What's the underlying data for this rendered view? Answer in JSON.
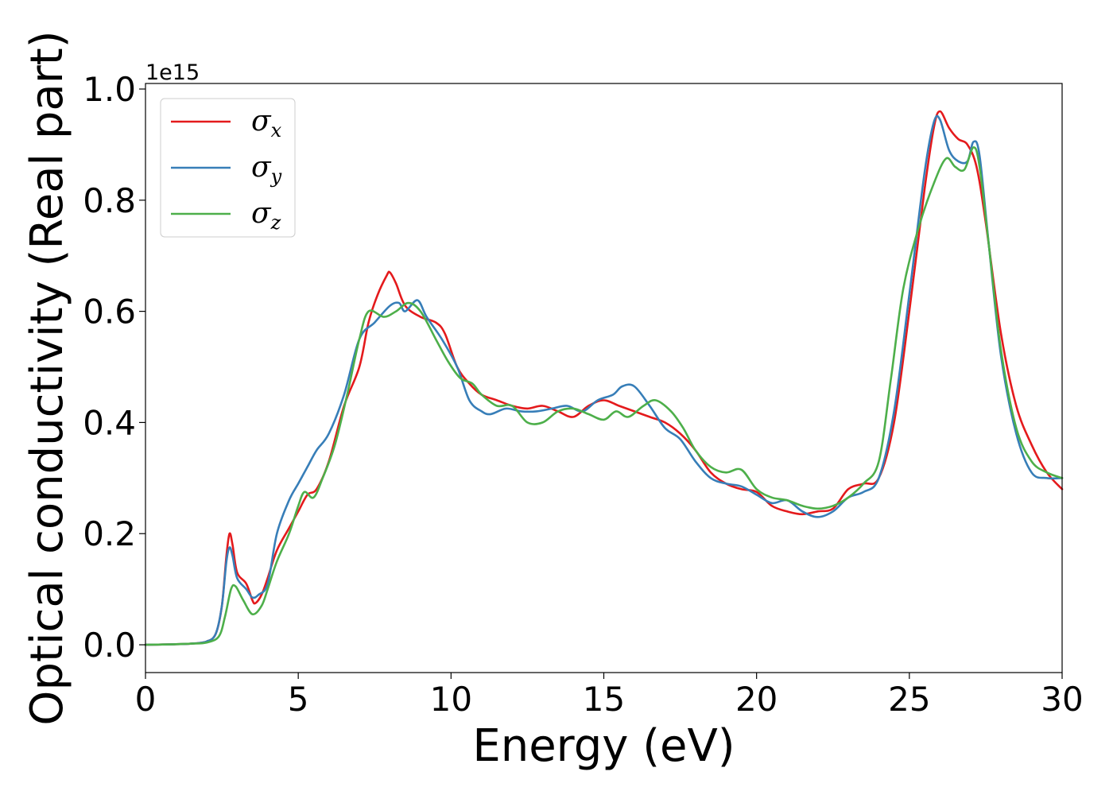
{
  "chart_data": {
    "type": "line",
    "xlabel": "Energy (eV)",
    "ylabel": "Optical conductivity (Real part)",
    "y_offset_label": "1e15",
    "xlim": [
      0,
      30
    ],
    "ylim": [
      -0.05,
      1.01
    ],
    "x_ticks": [
      0,
      5,
      10,
      15,
      20,
      25,
      30
    ],
    "x_tick_labels": [
      "0",
      "5",
      "10",
      "15",
      "20",
      "25",
      "30"
    ],
    "y_ticks": [
      0.0,
      0.2,
      0.4,
      0.6,
      0.8,
      1.0
    ],
    "y_tick_labels": [
      "0.0",
      "0.2",
      "0.4",
      "0.6",
      "0.8",
      "1.0"
    ],
    "grid": false,
    "legend_position": "top-left",
    "series": [
      {
        "name": "σx",
        "symbol": "σ",
        "subscript": "x",
        "color": "#e41a1c",
        "points": [
          [
            0,
            0
          ],
          [
            1,
            0.001
          ],
          [
            1.5,
            0.002
          ],
          [
            2,
            0.006
          ],
          [
            2.3,
            0.02
          ],
          [
            2.5,
            0.07
          ],
          [
            2.65,
            0.16
          ],
          [
            2.75,
            0.2
          ],
          [
            2.85,
            0.18
          ],
          [
            3.0,
            0.13
          ],
          [
            3.3,
            0.11
          ],
          [
            3.5,
            0.08
          ],
          [
            3.6,
            0.075
          ],
          [
            3.8,
            0.09
          ],
          [
            4.0,
            0.12
          ],
          [
            4.3,
            0.17
          ],
          [
            4.7,
            0.21
          ],
          [
            5.0,
            0.24
          ],
          [
            5.3,
            0.27
          ],
          [
            5.6,
            0.28
          ],
          [
            6.0,
            0.33
          ],
          [
            6.5,
            0.43
          ],
          [
            7.0,
            0.5
          ],
          [
            7.3,
            0.58
          ],
          [
            7.6,
            0.63
          ],
          [
            7.9,
            0.665
          ],
          [
            8.0,
            0.67
          ],
          [
            8.2,
            0.65
          ],
          [
            8.5,
            0.61
          ],
          [
            9.0,
            0.59
          ],
          [
            9.5,
            0.58
          ],
          [
            9.8,
            0.56
          ],
          [
            10.2,
            0.5
          ],
          [
            10.6,
            0.47
          ],
          [
            11.0,
            0.45
          ],
          [
            11.5,
            0.44
          ],
          [
            12.0,
            0.43
          ],
          [
            12.5,
            0.425
          ],
          [
            13.0,
            0.43
          ],
          [
            13.5,
            0.42
          ],
          [
            14.0,
            0.41
          ],
          [
            14.5,
            0.43
          ],
          [
            15.0,
            0.44
          ],
          [
            15.5,
            0.43
          ],
          [
            16.0,
            0.42
          ],
          [
            16.5,
            0.41
          ],
          [
            17.0,
            0.4
          ],
          [
            17.5,
            0.38
          ],
          [
            18.0,
            0.35
          ],
          [
            18.5,
            0.31
          ],
          [
            19.0,
            0.29
          ],
          [
            19.5,
            0.28
          ],
          [
            20.0,
            0.275
          ],
          [
            20.5,
            0.25
          ],
          [
            21.0,
            0.24
          ],
          [
            21.5,
            0.235
          ],
          [
            22.0,
            0.24
          ],
          [
            22.5,
            0.245
          ],
          [
            23.0,
            0.28
          ],
          [
            23.5,
            0.29
          ],
          [
            24.0,
            0.3
          ],
          [
            24.5,
            0.4
          ],
          [
            25.0,
            0.6
          ],
          [
            25.5,
            0.82
          ],
          [
            25.8,
            0.93
          ],
          [
            26.0,
            0.96
          ],
          [
            26.3,
            0.93
          ],
          [
            26.6,
            0.91
          ],
          [
            26.9,
            0.9
          ],
          [
            27.2,
            0.86
          ],
          [
            27.5,
            0.76
          ],
          [
            28.0,
            0.56
          ],
          [
            28.5,
            0.43
          ],
          [
            29.0,
            0.36
          ],
          [
            29.5,
            0.31
          ],
          [
            30.0,
            0.28
          ]
        ]
      },
      {
        "name": "σy",
        "symbol": "σ",
        "subscript": "y",
        "color": "#377eb8",
        "points": [
          [
            0,
            0
          ],
          [
            1,
            0.001
          ],
          [
            1.5,
            0.002
          ],
          [
            2,
            0.006
          ],
          [
            2.3,
            0.02
          ],
          [
            2.5,
            0.07
          ],
          [
            2.65,
            0.15
          ],
          [
            2.75,
            0.175
          ],
          [
            2.85,
            0.16
          ],
          [
            3.0,
            0.12
          ],
          [
            3.3,
            0.1
          ],
          [
            3.5,
            0.085
          ],
          [
            3.7,
            0.09
          ],
          [
            4.0,
            0.11
          ],
          [
            4.3,
            0.2
          ],
          [
            4.7,
            0.26
          ],
          [
            5.0,
            0.29
          ],
          [
            5.3,
            0.32
          ],
          [
            5.6,
            0.35
          ],
          [
            6.0,
            0.38
          ],
          [
            6.5,
            0.45
          ],
          [
            7.0,
            0.55
          ],
          [
            7.5,
            0.58
          ],
          [
            8.0,
            0.61
          ],
          [
            8.3,
            0.615
          ],
          [
            8.5,
            0.6
          ],
          [
            8.9,
            0.62
          ],
          [
            9.2,
            0.59
          ],
          [
            9.7,
            0.55
          ],
          [
            10.2,
            0.5
          ],
          [
            10.6,
            0.44
          ],
          [
            11.0,
            0.42
          ],
          [
            11.3,
            0.415
          ],
          [
            11.8,
            0.425
          ],
          [
            12.3,
            0.42
          ],
          [
            12.8,
            0.42
          ],
          [
            13.3,
            0.425
          ],
          [
            13.8,
            0.43
          ],
          [
            14.3,
            0.42
          ],
          [
            14.8,
            0.44
          ],
          [
            15.3,
            0.45
          ],
          [
            15.6,
            0.465
          ],
          [
            16.0,
            0.465
          ],
          [
            16.5,
            0.43
          ],
          [
            17.0,
            0.39
          ],
          [
            17.5,
            0.37
          ],
          [
            18.0,
            0.33
          ],
          [
            18.5,
            0.3
          ],
          [
            19.0,
            0.29
          ],
          [
            19.5,
            0.285
          ],
          [
            20.0,
            0.27
          ],
          [
            20.5,
            0.255
          ],
          [
            21.0,
            0.26
          ],
          [
            21.5,
            0.24
          ],
          [
            22.0,
            0.23
          ],
          [
            22.5,
            0.24
          ],
          [
            23.0,
            0.265
          ],
          [
            23.5,
            0.275
          ],
          [
            24.0,
            0.3
          ],
          [
            24.5,
            0.42
          ],
          [
            25.0,
            0.63
          ],
          [
            25.5,
            0.85
          ],
          [
            25.8,
            0.94
          ],
          [
            26.0,
            0.945
          ],
          [
            26.3,
            0.89
          ],
          [
            26.6,
            0.87
          ],
          [
            26.9,
            0.87
          ],
          [
            27.1,
            0.905
          ],
          [
            27.3,
            0.88
          ],
          [
            27.6,
            0.72
          ],
          [
            28.0,
            0.52
          ],
          [
            28.5,
            0.38
          ],
          [
            29.0,
            0.31
          ],
          [
            29.5,
            0.3
          ],
          [
            30.0,
            0.3
          ]
        ]
      },
      {
        "name": "σz",
        "symbol": "σ",
        "subscript": "z",
        "color": "#4daf4a",
        "points": [
          [
            0,
            0
          ],
          [
            1,
            0.001
          ],
          [
            1.5,
            0.002
          ],
          [
            2,
            0.004
          ],
          [
            2.4,
            0.015
          ],
          [
            2.6,
            0.05
          ],
          [
            2.8,
            0.1
          ],
          [
            2.95,
            0.105
          ],
          [
            3.2,
            0.08
          ],
          [
            3.5,
            0.055
          ],
          [
            3.8,
            0.07
          ],
          [
            4.0,
            0.1
          ],
          [
            4.3,
            0.15
          ],
          [
            4.7,
            0.2
          ],
          [
            5.0,
            0.25
          ],
          [
            5.2,
            0.275
          ],
          [
            5.5,
            0.265
          ],
          [
            5.8,
            0.3
          ],
          [
            6.2,
            0.36
          ],
          [
            6.6,
            0.45
          ],
          [
            7.0,
            0.55
          ],
          [
            7.3,
            0.6
          ],
          [
            7.8,
            0.59
          ],
          [
            8.2,
            0.6
          ],
          [
            8.6,
            0.615
          ],
          [
            9.0,
            0.6
          ],
          [
            9.5,
            0.55
          ],
          [
            9.9,
            0.51
          ],
          [
            10.3,
            0.48
          ],
          [
            10.7,
            0.47
          ],
          [
            11.0,
            0.45
          ],
          [
            11.5,
            0.43
          ],
          [
            12.0,
            0.43
          ],
          [
            12.5,
            0.4
          ],
          [
            13.0,
            0.4
          ],
          [
            13.5,
            0.42
          ],
          [
            14.0,
            0.425
          ],
          [
            14.5,
            0.415
          ],
          [
            15.0,
            0.405
          ],
          [
            15.4,
            0.42
          ],
          [
            15.8,
            0.41
          ],
          [
            16.3,
            0.43
          ],
          [
            16.7,
            0.44
          ],
          [
            17.2,
            0.42
          ],
          [
            17.6,
            0.39
          ],
          [
            18.0,
            0.35
          ],
          [
            18.5,
            0.32
          ],
          [
            19.0,
            0.31
          ],
          [
            19.5,
            0.315
          ],
          [
            20.0,
            0.28
          ],
          [
            20.5,
            0.265
          ],
          [
            21.0,
            0.26
          ],
          [
            21.5,
            0.25
          ],
          [
            22.0,
            0.245
          ],
          [
            22.5,
            0.25
          ],
          [
            23.0,
            0.265
          ],
          [
            23.5,
            0.29
          ],
          [
            24.0,
            0.33
          ],
          [
            24.4,
            0.48
          ],
          [
            24.8,
            0.64
          ],
          [
            25.3,
            0.75
          ],
          [
            25.8,
            0.83
          ],
          [
            26.2,
            0.875
          ],
          [
            26.5,
            0.86
          ],
          [
            26.8,
            0.855
          ],
          [
            27.1,
            0.895
          ],
          [
            27.3,
            0.86
          ],
          [
            27.6,
            0.72
          ],
          [
            28.0,
            0.53
          ],
          [
            28.5,
            0.39
          ],
          [
            29.0,
            0.33
          ],
          [
            29.5,
            0.31
          ],
          [
            30.0,
            0.3
          ]
        ]
      }
    ]
  }
}
